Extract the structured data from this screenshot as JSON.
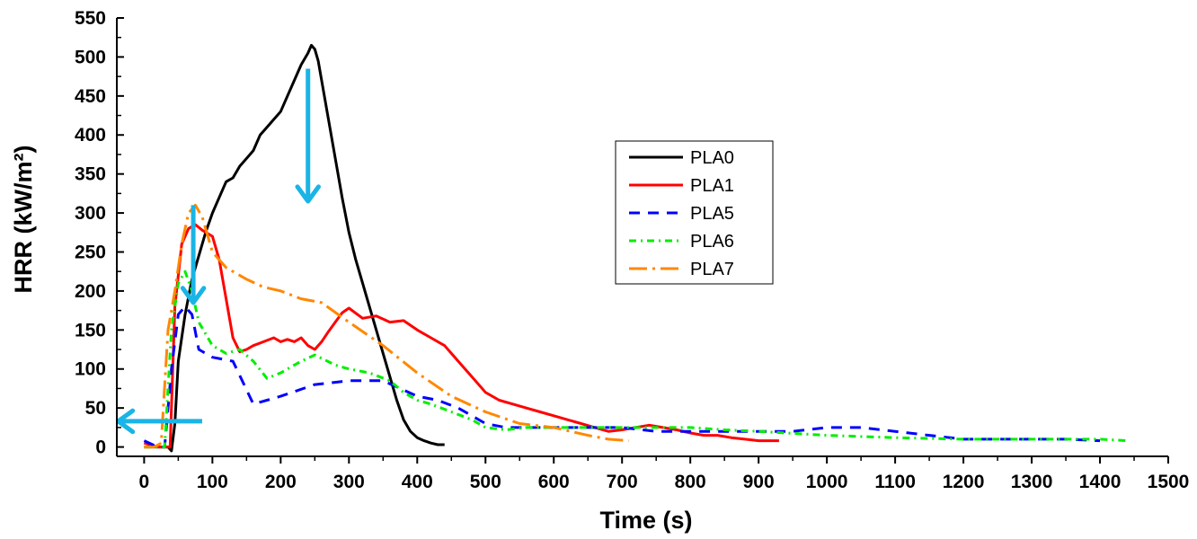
{
  "chart_data": {
    "type": "line",
    "title": "",
    "xlabel": "Time (s)",
    "ylabel": "HRR (kW/m²)",
    "xlim": [
      -40,
      1500
    ],
    "ylim": [
      -12,
      550
    ],
    "xticks": [
      0,
      100,
      200,
      300,
      400,
      500,
      600,
      700,
      800,
      900,
      1000,
      1100,
      1200,
      1300,
      1400,
      1500
    ],
    "yticks": [
      0,
      50,
      100,
      150,
      200,
      250,
      300,
      350,
      400,
      450,
      500,
      550
    ],
    "legend_position": "center-right",
    "grid": false,
    "series": [
      {
        "name": "PLA0",
        "color": "#000000",
        "dash": "solid",
        "x": [
          0,
          25,
          35,
          40,
          45,
          50,
          60,
          70,
          80,
          90,
          100,
          110,
          120,
          130,
          140,
          150,
          160,
          170,
          180,
          190,
          200,
          210,
          220,
          230,
          240,
          245,
          250,
          255,
          260,
          270,
          280,
          290,
          300,
          310,
          320,
          330,
          340,
          350,
          360,
          370,
          380,
          390,
          400,
          410,
          420,
          430,
          440
        ],
        "y": [
          0,
          0,
          0,
          -5,
          30,
          110,
          170,
          215,
          245,
          275,
          300,
          320,
          340,
          345,
          360,
          370,
          380,
          400,
          410,
          420,
          430,
          450,
          470,
          490,
          505,
          515,
          510,
          495,
          470,
          420,
          370,
          320,
          275,
          240,
          210,
          180,
          150,
          120,
          90,
          60,
          35,
          20,
          12,
          8,
          5,
          3,
          3
        ]
      },
      {
        "name": "PLA1",
        "color": "#ff0000",
        "dash": "solid",
        "x": [
          0,
          20,
          30,
          38,
          45,
          55,
          65,
          75,
          85,
          100,
          110,
          120,
          130,
          140,
          150,
          160,
          175,
          190,
          200,
          210,
          220,
          230,
          240,
          250,
          260,
          270,
          280,
          290,
          300,
          320,
          340,
          360,
          380,
          400,
          420,
          440,
          460,
          480,
          500,
          520,
          540,
          560,
          580,
          600,
          620,
          640,
          660,
          680,
          700,
          720,
          740,
          760,
          780,
          800,
          820,
          840,
          860,
          880,
          900,
          930
        ],
        "y": [
          5,
          0,
          0,
          0,
          180,
          260,
          280,
          285,
          278,
          270,
          240,
          190,
          140,
          122,
          125,
          130,
          135,
          140,
          135,
          138,
          135,
          140,
          130,
          125,
          135,
          148,
          160,
          172,
          178,
          165,
          168,
          160,
          162,
          150,
          140,
          130,
          110,
          90,
          70,
          60,
          55,
          50,
          45,
          40,
          35,
          30,
          25,
          20,
          22,
          25,
          28,
          25,
          22,
          18,
          15,
          15,
          12,
          10,
          8,
          8
        ]
      },
      {
        "name": "PLA5",
        "color": "#0000ff",
        "dash": "12,9",
        "x": [
          0,
          20,
          30,
          40,
          50,
          60,
          70,
          80,
          100,
          130,
          160,
          180,
          200,
          250,
          300,
          350,
          400,
          430,
          460,
          500,
          530,
          560,
          600,
          650,
          700,
          750,
          800,
          850,
          880,
          950,
          1000,
          1050,
          1100,
          1150,
          1200,
          1250,
          1300,
          1350,
          1400
        ],
        "y": [
          8,
          0,
          0,
          100,
          170,
          180,
          170,
          125,
          115,
          110,
          55,
          60,
          65,
          80,
          85,
          85,
          65,
          60,
          50,
          30,
          25,
          25,
          25,
          25,
          25,
          20,
          20,
          20,
          20,
          20,
          25,
          25,
          20,
          15,
          10,
          10,
          10,
          10,
          8
        ]
      },
      {
        "name": "PLA6",
        "color": "#00ee00",
        "dash": "8,5,2,5",
        "x": [
          0,
          20,
          30,
          40,
          50,
          60,
          70,
          80,
          100,
          120,
          140,
          160,
          180,
          200,
          230,
          250,
          280,
          300,
          330,
          360,
          380,
          400,
          420,
          450,
          480,
          500,
          530,
          560,
          600,
          650,
          700,
          750,
          800,
          850,
          900,
          1000,
          1100,
          1200,
          1300,
          1400,
          1440
        ],
        "y": [
          0,
          0,
          0,
          150,
          210,
          225,
          200,
          160,
          130,
          120,
          125,
          110,
          88,
          95,
          110,
          118,
          105,
          100,
          95,
          85,
          70,
          60,
          55,
          45,
          35,
          25,
          22,
          25,
          25,
          25,
          25,
          25,
          25,
          22,
          20,
          15,
          12,
          10,
          10,
          10,
          8
        ]
      },
      {
        "name": "PLA7",
        "color": "#ff8800",
        "dash": "20,6,3,6",
        "x": [
          0,
          15,
          25,
          35,
          45,
          55,
          65,
          75,
          85,
          100,
          120,
          150,
          175,
          200,
          230,
          260,
          300,
          350,
          400,
          450,
          500,
          550,
          600,
          650,
          680,
          710
        ],
        "y": [
          0,
          0,
          5,
          150,
          200,
          260,
          300,
          310,
          295,
          250,
          230,
          215,
          205,
          200,
          190,
          185,
          160,
          130,
          95,
          65,
          45,
          30,
          25,
          15,
          10,
          8
        ]
      }
    ],
    "annotations": [
      {
        "type": "arrow",
        "direction": "down",
        "color": "#1ab4e6",
        "x_from": 240,
        "x_to": 240,
        "y_from": 485,
        "y_to": 315
      },
      {
        "type": "arrow",
        "direction": "down",
        "color": "#1ab4e6",
        "x_from": 72,
        "x_to": 72,
        "y_from": 310,
        "y_to": 185
      },
      {
        "type": "arrow",
        "direction": "left",
        "color": "#1ab4e6",
        "x_from": 85,
        "x_to": -38,
        "y_from": 33,
        "y_to": 33
      }
    ]
  }
}
